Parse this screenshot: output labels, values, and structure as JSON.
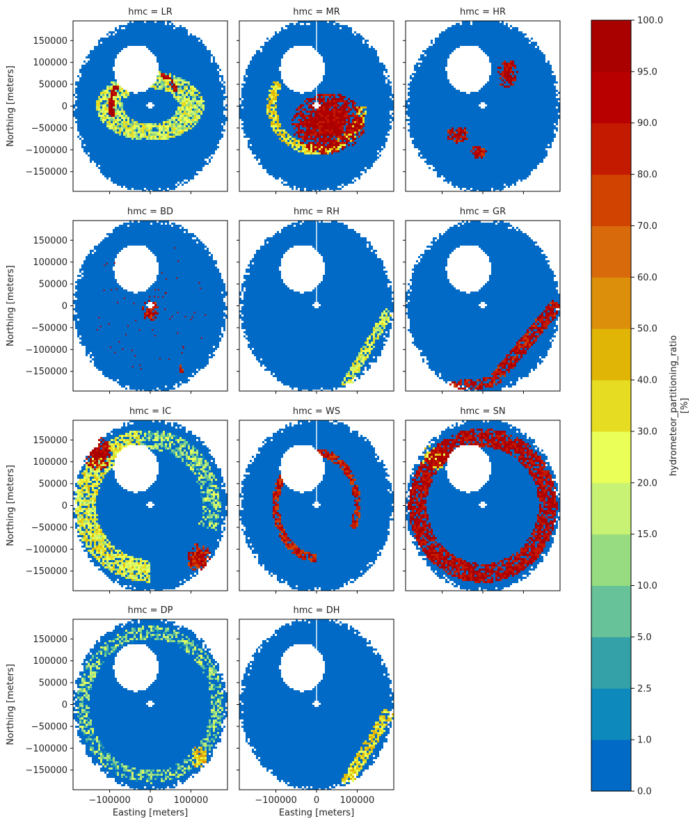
{
  "chart_data": {
    "type": "heatmap",
    "facet_variable": "hmc",
    "panels": [
      {
        "hmc": "LR",
        "title": "hmc = LR",
        "row": 0,
        "col": 0,
        "show_ylabel": true,
        "show_xlabel": false,
        "features": [
          {
            "kind": "ring",
            "rx": 100000,
            "ry": 60000,
            "angle_start": 0,
            "angle_end": 360,
            "value": 22,
            "width": 65000
          },
          {
            "kind": "ring",
            "rx": 95000,
            "ry": 95000,
            "angle_start": 150,
            "angle_end": 195,
            "value": 97,
            "width": 14000
          },
          {
            "kind": "ring",
            "rx": 70000,
            "ry": 80000,
            "angle_start": 25,
            "angle_end": 70,
            "value": 97,
            "width": 12000
          }
        ]
      },
      {
        "hmc": "MR",
        "title": "hmc = MR",
        "row": 0,
        "col": 1,
        "show_ylabel": false,
        "show_xlabel": false,
        "radial_line": true,
        "features": [
          {
            "kind": "blob",
            "cx": 30000,
            "cy": -40000,
            "rx": 90000,
            "ry": 70000,
            "value": 97
          },
          {
            "kind": "ring",
            "rx": 110000,
            "ry": 100000,
            "angle_start": 150,
            "angle_end": 360,
            "value": 35,
            "width": 25000
          }
        ]
      },
      {
        "hmc": "HR",
        "title": "hmc = HR",
        "row": 0,
        "col": 2,
        "show_ylabel": false,
        "show_xlabel": false,
        "features": [
          {
            "kind": "blob",
            "cx": 60000,
            "cy": 75000,
            "rx": 25000,
            "ry": 35000,
            "value": 95
          },
          {
            "kind": "blob",
            "cx": -60000,
            "cy": -65000,
            "rx": 30000,
            "ry": 20000,
            "value": 92
          },
          {
            "kind": "blob",
            "cx": -10000,
            "cy": -105000,
            "rx": 20000,
            "ry": 15000,
            "value": 92
          }
        ]
      },
      {
        "hmc": "BD",
        "title": "hmc = BD",
        "row": 1,
        "col": 0,
        "show_ylabel": true,
        "show_xlabel": false,
        "features": [
          {
            "kind": "blob",
            "cx": 0,
            "cy": -10000,
            "rx": 20000,
            "ry": 25000,
            "value": 90
          },
          {
            "kind": "blob",
            "cx": 75000,
            "cy": -145000,
            "rx": 8000,
            "ry": 10000,
            "value": 90
          },
          {
            "kind": "scatter",
            "count": 70,
            "value": 92
          }
        ]
      },
      {
        "hmc": "RH",
        "title": "hmc = RH",
        "row": 1,
        "col": 1,
        "show_ylabel": false,
        "show_xlabel": false,
        "radial_line": true,
        "features": [
          {
            "kind": "band",
            "x1": 180000,
            "y1": -10000,
            "x2": 70000,
            "y2": -185000,
            "width": 12000,
            "value": 25
          }
        ]
      },
      {
        "hmc": "GR",
        "title": "hmc = GR",
        "row": 1,
        "col": 2,
        "show_ylabel": false,
        "show_xlabel": false,
        "features": [
          {
            "kind": "band",
            "x1": 185000,
            "y1": 5000,
            "x2": 25000,
            "y2": -175000,
            "width": 16000,
            "value": 92
          },
          {
            "kind": "band",
            "x1": 25000,
            "y1": -175000,
            "x2": -85000,
            "y2": -185000,
            "width": 12000,
            "value": 92
          }
        ]
      },
      {
        "hmc": "IC",
        "title": "hmc = IC",
        "row": 2,
        "col": 0,
        "show_ylabel": true,
        "show_xlabel": false,
        "features": [
          {
            "kind": "ring",
            "rx": 160000,
            "ry": 150000,
            "angle_start": 100,
            "angle_end": 270,
            "value": 28,
            "width": 55000
          },
          {
            "kind": "ring",
            "rx": 150000,
            "ry": 150000,
            "angle_start": -20,
            "angle_end": 100,
            "value": 10,
            "width": 45000
          },
          {
            "kind": "blob",
            "cx": -130000,
            "cy": 120000,
            "rx": 35000,
            "ry": 40000,
            "value": 92
          },
          {
            "kind": "blob",
            "cx": 120000,
            "cy": -120000,
            "rx": 30000,
            "ry": 35000,
            "value": 88
          }
        ]
      },
      {
        "hmc": "WS",
        "title": "hmc = WS",
        "row": 2,
        "col": 1,
        "show_ylabel": false,
        "show_xlabel": false,
        "radial_line": true,
        "features": [
          {
            "kind": "ring",
            "rx": 100000,
            "ry": 120000,
            "angle_start": -30,
            "angle_end": 270,
            "value": 85,
            "width": 20000
          }
        ]
      },
      {
        "hmc": "SN",
        "title": "hmc = SN",
        "row": 2,
        "col": 2,
        "show_ylabel": false,
        "show_xlabel": false,
        "features": [
          {
            "kind": "ring",
            "rx": 160000,
            "ry": 155000,
            "angle_start": 0,
            "angle_end": 360,
            "value": 95,
            "width": 45000
          },
          {
            "kind": "blob",
            "cx": -120000,
            "cy": 110000,
            "rx": 30000,
            "ry": 30000,
            "value": 35
          }
        ]
      },
      {
        "hmc": "DP",
        "title": "hmc = DP",
        "row": 3,
        "col": 0,
        "show_ylabel": true,
        "show_xlabel": true,
        "features": [
          {
            "kind": "ring",
            "rx": 165000,
            "ry": 165000,
            "angle_start": 0,
            "angle_end": 360,
            "value": 8,
            "width": 30000
          },
          {
            "kind": "blob",
            "cx": 120000,
            "cy": -120000,
            "rx": 20000,
            "ry": 25000,
            "value": 40
          }
        ]
      },
      {
        "hmc": "DH",
        "title": "hmc = DH",
        "row": 3,
        "col": 1,
        "show_ylabel": false,
        "show_xlabel": true,
        "radial_line": true,
        "features": [
          {
            "kind": "band",
            "x1": 180000,
            "y1": -15000,
            "x2": 70000,
            "y2": -185000,
            "width": 14000,
            "value": 35
          }
        ]
      }
    ],
    "radar_coverage": {
      "ellipse_rx": 190000,
      "ellipse_ry": 200000,
      "no_data_blob_center": [
        -35000,
        85000
      ],
      "no_data_blob_radius": [
        55000,
        55000
      ],
      "center_hole_radius": 8000,
      "background_value": 0.5
    },
    "xlabel": "Easting [meters]",
    "ylabel": "Northing [meters]",
    "xlim": [
      -190000,
      190000
    ],
    "ylim": [
      -195000,
      195000
    ],
    "xticks": [
      -100000,
      0,
      100000
    ],
    "xtick_labels": [
      "−100000",
      "0",
      "100000"
    ],
    "yticks": [
      150000,
      100000,
      50000,
      0,
      -50000,
      -100000,
      -150000
    ],
    "ytick_labels": [
      "150000",
      "100000",
      "50000",
      "0",
      "−50000",
      "−100000",
      "−150000"
    ],
    "colorbar": {
      "label": "hydrometeor_partitioning_ratio\n[%]",
      "label_line1": "hydrometeor_partitioning_ratio",
      "label_line2": "[%]",
      "boundaries": [
        0,
        1,
        2.5,
        5,
        10,
        15,
        20,
        30,
        40,
        50,
        60,
        70,
        80,
        90,
        95,
        100
      ],
      "tick_labels": [
        "0.0",
        "1.0",
        "2.5",
        "5.0",
        "10.0",
        "15.0",
        "20.0",
        "30.0",
        "40.0",
        "50.0",
        "60.0",
        "70.0",
        "80.0",
        "90.0",
        "95.0",
        "100.0"
      ],
      "colors": [
        "#006ac6",
        "#0d89bc",
        "#33a1a7",
        "#67c199",
        "#97dc80",
        "#c7f274",
        "#eaff57",
        "#e6dc22",
        "#e0b505",
        "#dc8f0a",
        "#d86a0b",
        "#d04300",
        "#c41a00",
        "#b80000",
        "#a90000"
      ]
    },
    "grid": false,
    "legend": "none"
  }
}
